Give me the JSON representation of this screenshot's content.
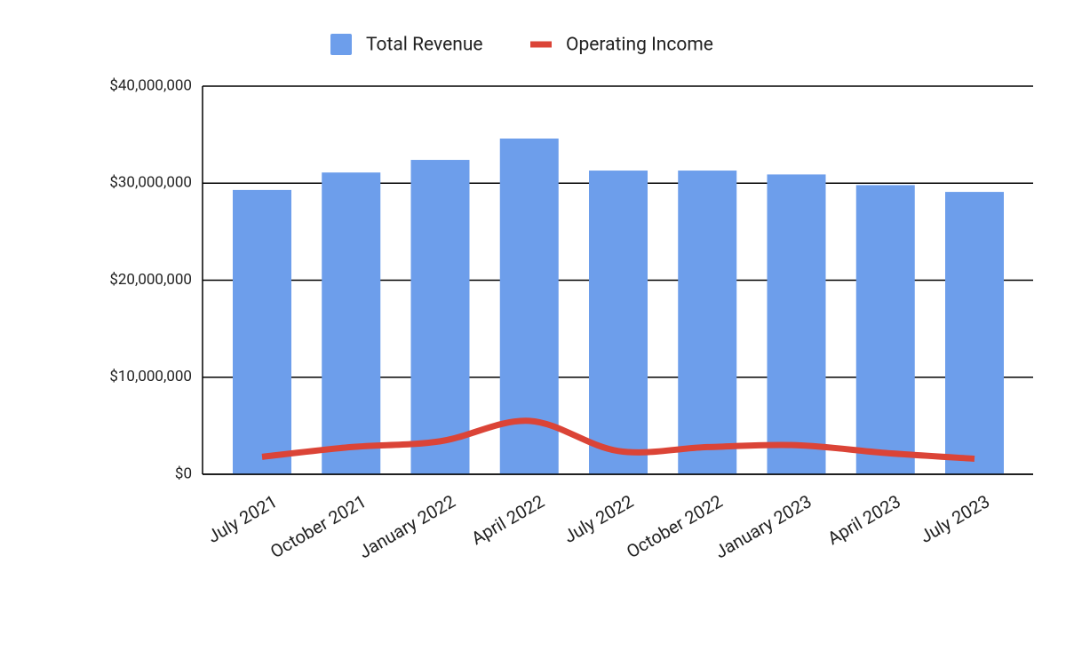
{
  "chart_data": {
    "type": "bar-line",
    "categories": [
      "July 2021",
      "October 2021",
      "January 2022",
      "April 2022",
      "July 2022",
      "October 2022",
      "January 2023",
      "April 2023",
      "July 2023"
    ],
    "series": [
      {
        "name": "Total Revenue",
        "type": "bar",
        "color": "#6d9eeb",
        "values": [
          29300000,
          31100000,
          32400000,
          34600000,
          31300000,
          31300000,
          30900000,
          29800000,
          29100000
        ]
      },
      {
        "name": "Operating Income",
        "type": "line",
        "color": "#db4437",
        "values": [
          1800000,
          2800000,
          3400000,
          5500000,
          2400000,
          2800000,
          3000000,
          2200000,
          1600000
        ]
      }
    ],
    "ylim": [
      0,
      40000000
    ],
    "yticks": [
      {
        "value": 0,
        "label": "$0"
      },
      {
        "value": 10000000,
        "label": "$10,000,000"
      },
      {
        "value": 20000000,
        "label": "$20,000,000"
      },
      {
        "value": 30000000,
        "label": "$30,000,000"
      },
      {
        "value": 40000000,
        "label": "$40,000,000"
      }
    ],
    "grid": true,
    "legend": "top"
  }
}
